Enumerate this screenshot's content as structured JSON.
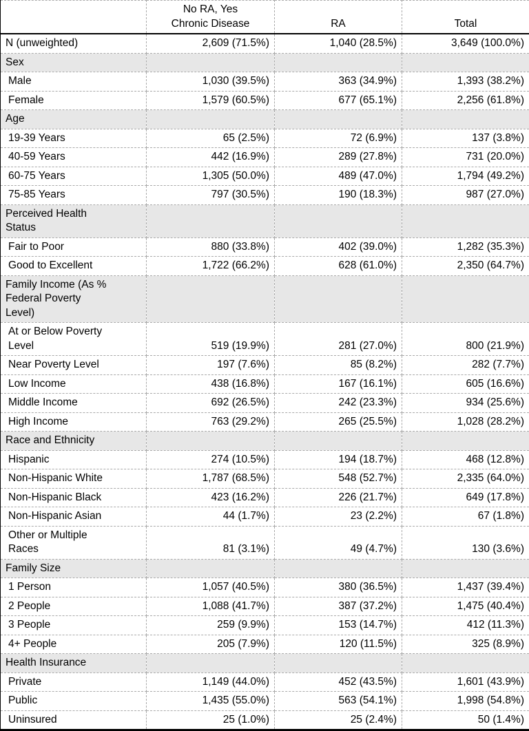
{
  "style": {
    "section_row_background": "#e7e7e7",
    "grid_border_color": "#a9a9a9",
    "rule_color": "#000000"
  },
  "table": {
    "columns": [
      "",
      "No RA, Yes\nChronic Disease",
      "RA",
      "Total"
    ],
    "rows": [
      {
        "type": "data",
        "indent": false,
        "label": "N (unweighted)",
        "values": [
          "2,609 (71.5%)",
          "1,040 (28.5%)",
          "3,649 (100.0%)"
        ]
      },
      {
        "type": "section",
        "label": "Sex",
        "values": [
          "",
          "",
          ""
        ]
      },
      {
        "type": "data",
        "indent": true,
        "label": "Male",
        "values": [
          "1,030 (39.5%)",
          "363 (34.9%)",
          "1,393 (38.2%)"
        ]
      },
      {
        "type": "data",
        "indent": true,
        "label": "Female",
        "values": [
          "1,579 (60.5%)",
          "677 (65.1%)",
          "2,256 (61.8%)"
        ]
      },
      {
        "type": "section",
        "label": "Age",
        "values": [
          "",
          "",
          ""
        ]
      },
      {
        "type": "data",
        "indent": true,
        "label": "19-39 Years",
        "values": [
          "65 (2.5%)",
          "72 (6.9%)",
          "137 (3.8%)"
        ]
      },
      {
        "type": "data",
        "indent": true,
        "label": "40-59 Years",
        "values": [
          "442 (16.9%)",
          "289 (27.8%)",
          "731 (20.0%)"
        ]
      },
      {
        "type": "data",
        "indent": true,
        "label": "60-75 Years",
        "values": [
          "1,305 (50.0%)",
          "489 (47.0%)",
          "1,794 (49.2%)"
        ]
      },
      {
        "type": "data",
        "indent": true,
        "label": "75-85 Years",
        "values": [
          "797 (30.5%)",
          "190 (18.3%)",
          "987 (27.0%)"
        ]
      },
      {
        "type": "section",
        "label": "Perceived Health\nStatus",
        "values": [
          "",
          "",
          ""
        ]
      },
      {
        "type": "data",
        "indent": true,
        "label": "Fair to Poor",
        "values": [
          "880 (33.8%)",
          "402 (39.0%)",
          "1,282 (35.3%)"
        ]
      },
      {
        "type": "data",
        "indent": true,
        "label": "Good to Excellent",
        "values": [
          "1,722 (66.2%)",
          "628 (61.0%)",
          "2,350 (64.7%)"
        ]
      },
      {
        "type": "section",
        "label": "Family Income (As %\nFederal Poverty\nLevel)",
        "values": [
          "",
          "",
          ""
        ]
      },
      {
        "type": "data",
        "indent": true,
        "label": "At or Below Poverty\nLevel",
        "values": [
          "519 (19.9%)",
          "281 (27.0%)",
          "800 (21.9%)"
        ]
      },
      {
        "type": "data",
        "indent": true,
        "label": "Near Poverty Level",
        "values": [
          "197 (7.6%)",
          "85 (8.2%)",
          "282 (7.7%)"
        ]
      },
      {
        "type": "data",
        "indent": true,
        "label": "Low Income",
        "values": [
          "438 (16.8%)",
          "167 (16.1%)",
          "605 (16.6%)"
        ]
      },
      {
        "type": "data",
        "indent": true,
        "label": "Middle Income",
        "values": [
          "692 (26.5%)",
          "242 (23.3%)",
          "934 (25.6%)"
        ]
      },
      {
        "type": "data",
        "indent": true,
        "label": "High Income",
        "values": [
          "763 (29.2%)",
          "265 (25.5%)",
          "1,028 (28.2%)"
        ]
      },
      {
        "type": "section",
        "label": "Race and Ethnicity",
        "values": [
          "",
          "",
          ""
        ]
      },
      {
        "type": "data",
        "indent": true,
        "label": "Hispanic",
        "values": [
          "274 (10.5%)",
          "194 (18.7%)",
          "468 (12.8%)"
        ]
      },
      {
        "type": "data",
        "indent": true,
        "label": "Non-Hispanic White",
        "values": [
          "1,787 (68.5%)",
          "548 (52.7%)",
          "2,335 (64.0%)"
        ]
      },
      {
        "type": "data",
        "indent": true,
        "label": "Non-Hispanic Black",
        "values": [
          "423 (16.2%)",
          "226 (21.7%)",
          "649 (17.8%)"
        ]
      },
      {
        "type": "data",
        "indent": true,
        "label": "Non-Hispanic Asian",
        "values": [
          "44 (1.7%)",
          "23 (2.2%)",
          "67 (1.8%)"
        ]
      },
      {
        "type": "data",
        "indent": true,
        "label": "Other or Multiple\nRaces",
        "values": [
          "81 (3.1%)",
          "49 (4.7%)",
          "130 (3.6%)"
        ]
      },
      {
        "type": "section",
        "label": "Family Size",
        "values": [
          "",
          "",
          ""
        ]
      },
      {
        "type": "data",
        "indent": true,
        "label": "1 Person",
        "values": [
          "1,057 (40.5%)",
          "380 (36.5%)",
          "1,437 (39.4%)"
        ]
      },
      {
        "type": "data",
        "indent": true,
        "label": "2 People",
        "values": [
          "1,088 (41.7%)",
          "387 (37.2%)",
          "1,475 (40.4%)"
        ]
      },
      {
        "type": "data",
        "indent": true,
        "label": "3 People",
        "values": [
          "259 (9.9%)",
          "153 (14.7%)",
          "412 (11.3%)"
        ]
      },
      {
        "type": "data",
        "indent": true,
        "label": "4+ People",
        "values": [
          "205 (7.9%)",
          "120 (11.5%)",
          "325 (8.9%)"
        ]
      },
      {
        "type": "section",
        "label": "Health Insurance",
        "values": [
          "",
          "",
          ""
        ]
      },
      {
        "type": "data",
        "indent": true,
        "label": "Private",
        "values": [
          "1,149 (44.0%)",
          "452 (43.5%)",
          "1,601 (43.9%)"
        ]
      },
      {
        "type": "data",
        "indent": true,
        "label": "Public",
        "values": [
          "1,435 (55.0%)",
          "563 (54.1%)",
          "1,998 (54.8%)"
        ]
      },
      {
        "type": "data",
        "indent": true,
        "label": "Uninsured",
        "values": [
          "25 (1.0%)",
          "25 (2.4%)",
          "50 (1.4%)"
        ]
      }
    ]
  }
}
